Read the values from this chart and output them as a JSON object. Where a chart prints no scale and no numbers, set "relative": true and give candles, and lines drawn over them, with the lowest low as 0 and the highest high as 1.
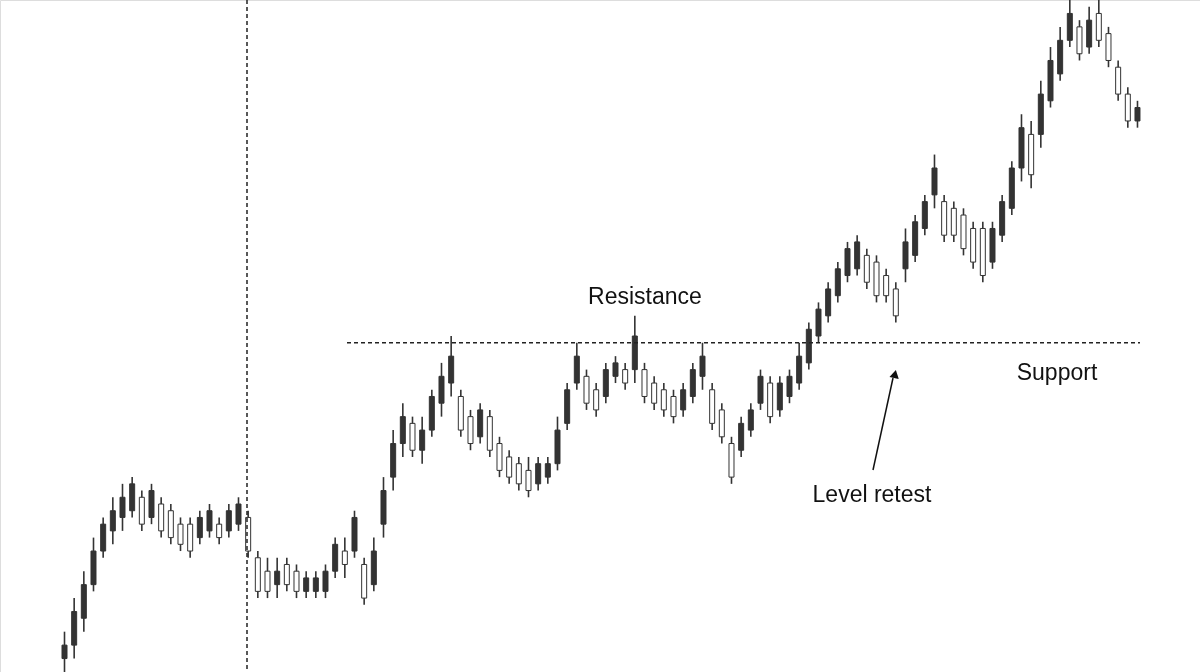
{
  "chart_data": {
    "type": "candlestick",
    "relative": true,
    "tick_labels": false,
    "color": "#333333",
    "categories": [
      null,
      null,
      null,
      null,
      null,
      null,
      null,
      null,
      null,
      null,
      null,
      null,
      null,
      null,
      null,
      null,
      null,
      null,
      null,
      null,
      null,
      null,
      null,
      null,
      null,
      null,
      null,
      null,
      null,
      null,
      null,
      null,
      null,
      null,
      null,
      null,
      null,
      null,
      null,
      null,
      null,
      null,
      null,
      null,
      null,
      null,
      null,
      null,
      null,
      null,
      null,
      null,
      null,
      null,
      null,
      null,
      null,
      null,
      null,
      null,
      null,
      null,
      null,
      null,
      null,
      null,
      null,
      null,
      null,
      null,
      null,
      null,
      null,
      null,
      null,
      null,
      null,
      null,
      null,
      null,
      null,
      null,
      null,
      null,
      null,
      null,
      null,
      null,
      null,
      null,
      null,
      null,
      null,
      null,
      null,
      null,
      null,
      null,
      null,
      null,
      null,
      null,
      null,
      null,
      null,
      null,
      null,
      null,
      null,
      null,
      null,
      null
    ],
    "ohlc": [
      [
        0.02,
        0.06,
        0.0,
        0.04
      ],
      [
        0.04,
        0.11,
        0.02,
        0.09
      ],
      [
        0.08,
        0.15,
        0.06,
        0.13
      ],
      [
        0.13,
        0.2,
        0.12,
        0.18
      ],
      [
        0.18,
        0.23,
        0.17,
        0.22
      ],
      [
        0.21,
        0.26,
        0.19,
        0.24
      ],
      [
        0.23,
        0.28,
        0.21,
        0.26
      ],
      [
        0.24,
        0.29,
        0.23,
        0.28
      ],
      [
        0.26,
        0.27,
        0.21,
        0.22
      ],
      [
        0.23,
        0.28,
        0.22,
        0.27
      ],
      [
        0.25,
        0.26,
        0.2,
        0.21
      ],
      [
        0.24,
        0.25,
        0.19,
        0.2
      ],
      [
        0.22,
        0.23,
        0.18,
        0.19
      ],
      [
        0.22,
        0.23,
        0.17,
        0.18
      ],
      [
        0.2,
        0.24,
        0.19,
        0.23
      ],
      [
        0.21,
        0.25,
        0.2,
        0.24
      ],
      [
        0.22,
        0.23,
        0.19,
        0.2
      ],
      [
        0.21,
        0.25,
        0.2,
        0.24
      ],
      [
        0.22,
        0.26,
        0.21,
        0.25
      ],
      [
        0.23,
        0.24,
        0.17,
        0.18
      ],
      [
        0.17,
        0.18,
        0.11,
        0.12
      ],
      [
        0.15,
        0.17,
        0.11,
        0.12
      ],
      [
        0.13,
        0.17,
        0.11,
        0.15
      ],
      [
        0.16,
        0.17,
        0.12,
        0.13
      ],
      [
        0.15,
        0.16,
        0.11,
        0.12
      ],
      [
        0.12,
        0.15,
        0.11,
        0.14
      ],
      [
        0.12,
        0.15,
        0.11,
        0.14
      ],
      [
        0.12,
        0.16,
        0.11,
        0.15
      ],
      [
        0.15,
        0.2,
        0.14,
        0.19
      ],
      [
        0.18,
        0.2,
        0.14,
        0.16
      ],
      [
        0.18,
        0.24,
        0.17,
        0.23
      ],
      [
        0.16,
        0.17,
        0.1,
        0.11
      ],
      [
        0.13,
        0.2,
        0.12,
        0.18
      ],
      [
        0.22,
        0.29,
        0.2,
        0.27
      ],
      [
        0.29,
        0.36,
        0.27,
        0.34
      ],
      [
        0.34,
        0.4,
        0.32,
        0.38
      ],
      [
        0.37,
        0.38,
        0.32,
        0.33
      ],
      [
        0.33,
        0.38,
        0.31,
        0.36
      ],
      [
        0.36,
        0.42,
        0.35,
        0.41
      ],
      [
        0.4,
        0.46,
        0.38,
        0.44
      ],
      [
        0.43,
        0.5,
        0.41,
        0.47
      ],
      [
        0.41,
        0.42,
        0.35,
        0.36
      ],
      [
        0.38,
        0.39,
        0.33,
        0.34
      ],
      [
        0.35,
        0.4,
        0.34,
        0.39
      ],
      [
        0.38,
        0.39,
        0.32,
        0.33
      ],
      [
        0.34,
        0.35,
        0.29,
        0.3
      ],
      [
        0.32,
        0.33,
        0.28,
        0.29
      ],
      [
        0.31,
        0.32,
        0.27,
        0.28
      ],
      [
        0.3,
        0.32,
        0.26,
        0.27
      ],
      [
        0.28,
        0.32,
        0.27,
        0.31
      ],
      [
        0.29,
        0.32,
        0.28,
        0.31
      ],
      [
        0.31,
        0.38,
        0.3,
        0.36
      ],
      [
        0.37,
        0.43,
        0.36,
        0.42
      ],
      [
        0.43,
        0.49,
        0.42,
        0.47
      ],
      [
        0.44,
        0.45,
        0.39,
        0.4
      ],
      [
        0.42,
        0.43,
        0.38,
        0.39
      ],
      [
        0.41,
        0.46,
        0.4,
        0.45
      ],
      [
        0.44,
        0.47,
        0.43,
        0.46
      ],
      [
        0.45,
        0.46,
        0.42,
        0.43
      ],
      [
        0.45,
        0.53,
        0.43,
        0.5
      ],
      [
        0.45,
        0.46,
        0.4,
        0.41
      ],
      [
        0.43,
        0.44,
        0.39,
        0.4
      ],
      [
        0.42,
        0.43,
        0.38,
        0.39
      ],
      [
        0.41,
        0.42,
        0.37,
        0.38
      ],
      [
        0.39,
        0.43,
        0.38,
        0.42
      ],
      [
        0.41,
        0.46,
        0.4,
        0.45
      ],
      [
        0.44,
        0.49,
        0.42,
        0.47
      ],
      [
        0.42,
        0.43,
        0.36,
        0.37
      ],
      [
        0.39,
        0.4,
        0.34,
        0.35
      ],
      [
        0.34,
        0.35,
        0.28,
        0.29
      ],
      [
        0.33,
        0.38,
        0.32,
        0.37
      ],
      [
        0.36,
        0.4,
        0.35,
        0.39
      ],
      [
        0.4,
        0.45,
        0.39,
        0.44
      ],
      [
        0.43,
        0.44,
        0.37,
        0.38
      ],
      [
        0.39,
        0.44,
        0.38,
        0.43
      ],
      [
        0.41,
        0.45,
        0.4,
        0.44
      ],
      [
        0.43,
        0.49,
        0.42,
        0.47
      ],
      [
        0.46,
        0.52,
        0.45,
        0.51
      ],
      [
        0.5,
        0.55,
        0.49,
        0.54
      ],
      [
        0.53,
        0.58,
        0.52,
        0.57
      ],
      [
        0.56,
        0.61,
        0.55,
        0.6
      ],
      [
        0.59,
        0.64,
        0.58,
        0.63
      ],
      [
        0.6,
        0.65,
        0.59,
        0.64
      ],
      [
        0.62,
        0.63,
        0.57,
        0.58
      ],
      [
        0.61,
        0.62,
        0.55,
        0.56
      ],
      [
        0.59,
        0.6,
        0.55,
        0.56
      ],
      [
        0.57,
        0.58,
        0.52,
        0.53
      ],
      [
        0.6,
        0.66,
        0.58,
        0.64
      ],
      [
        0.62,
        0.68,
        0.61,
        0.67
      ],
      [
        0.66,
        0.71,
        0.65,
        0.7
      ],
      [
        0.71,
        0.77,
        0.69,
        0.75
      ],
      [
        0.7,
        0.71,
        0.64,
        0.65
      ],
      [
        0.69,
        0.7,
        0.64,
        0.65
      ],
      [
        0.68,
        0.69,
        0.62,
        0.63
      ],
      [
        0.66,
        0.67,
        0.6,
        0.61
      ],
      [
        0.66,
        0.67,
        0.58,
        0.59
      ],
      [
        0.61,
        0.67,
        0.6,
        0.66
      ],
      [
        0.65,
        0.71,
        0.64,
        0.7
      ],
      [
        0.69,
        0.76,
        0.68,
        0.75
      ],
      [
        0.75,
        0.83,
        0.73,
        0.81
      ],
      [
        0.8,
        0.82,
        0.72,
        0.74
      ],
      [
        0.8,
        0.88,
        0.78,
        0.86
      ],
      [
        0.85,
        0.93,
        0.84,
        0.91
      ],
      [
        0.89,
        0.96,
        0.88,
        0.94
      ],
      [
        0.94,
        1.0,
        0.93,
        0.98
      ],
      [
        0.96,
        0.97,
        0.91,
        0.92
      ],
      [
        0.93,
        0.99,
        0.92,
        0.97
      ],
      [
        0.98,
        1.0,
        0.93,
        0.94
      ],
      [
        0.95,
        0.96,
        0.9,
        0.91
      ],
      [
        0.9,
        0.91,
        0.85,
        0.86
      ],
      [
        0.86,
        0.87,
        0.81,
        0.82
      ],
      [
        0.82,
        0.85,
        0.81,
        0.84
      ]
    ],
    "ref_lines": [
      {
        "axis": "y",
        "value": 0.49,
        "line_style": "dashed"
      }
    ],
    "annotations": [
      "Resistance",
      "Support",
      "Level retest"
    ]
  }
}
